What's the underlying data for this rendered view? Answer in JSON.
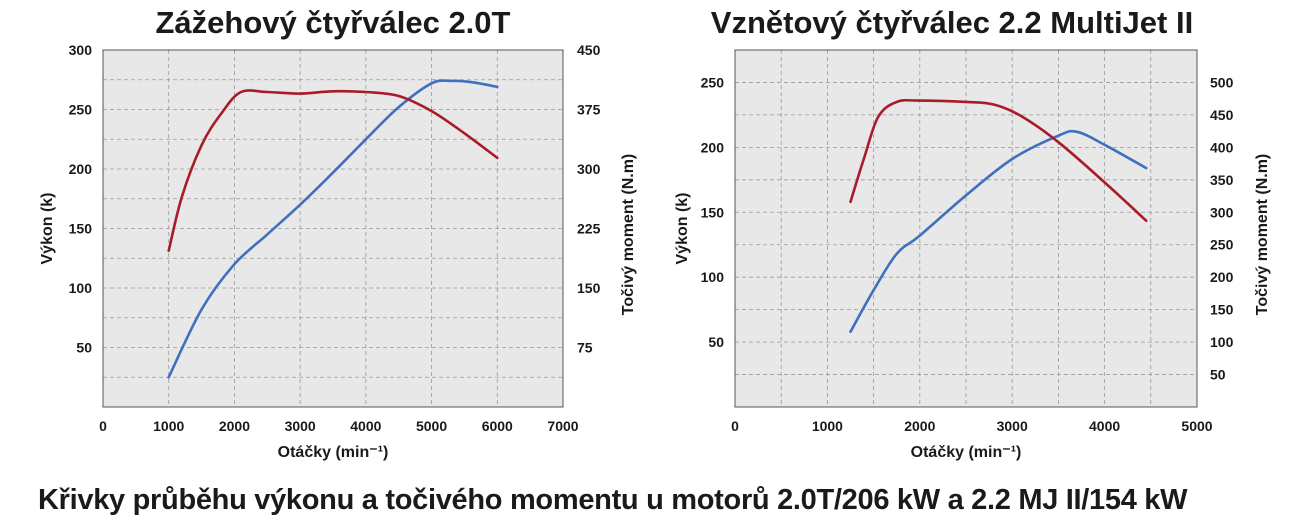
{
  "chart_data": [
    {
      "type": "line",
      "title": "Zážehový čtyřválec 2.0T",
      "xlabel": "Otáčky (min⁻¹)",
      "ylabel": "Výkon (k)",
      "y2label": "Točivý moment (N.m)",
      "xlim": [
        0,
        7000
      ],
      "ylim": [
        0,
        300
      ],
      "y2lim": [
        0,
        450
      ],
      "x_ticks": [
        "0",
        "1000",
        "2000",
        "3000",
        "4000",
        "5000",
        "6000",
        "7000"
      ],
      "y_ticks": [
        "50",
        "100",
        "150",
        "200",
        "250",
        "300"
      ],
      "y2_ticks": [
        "75",
        "150",
        "225",
        "300",
        "375",
        "450"
      ],
      "grid": true,
      "series": [
        {
          "name": "",
          "axis": "left",
          "color": "#3f6fbf",
          "x": [
            1000,
            1500,
            2000,
            2500,
            3000,
            3500,
            4000,
            4500,
            5000,
            5300,
            5600,
            6000
          ],
          "y": [
            25,
            82,
            120,
            145,
            170,
            197,
            225,
            252,
            272,
            274,
            273,
            269
          ]
        },
        {
          "name": "",
          "axis": "right",
          "color": "#a81c2a",
          "x": [
            1000,
            1200,
            1500,
            1800,
            2100,
            2500,
            3000,
            3500,
            4000,
            4500,
            5000,
            5500,
            6000
          ],
          "y": [
            197,
            265,
            330,
            370,
            397,
            397,
            395,
            398,
            397,
            392,
            373,
            345,
            314
          ]
        }
      ]
    },
    {
      "type": "line",
      "title": "Vznětový čtyřválec 2.2 MultiJet II",
      "xlabel": "Otáčky (min⁻¹)",
      "ylabel": "Výkon (k)",
      "y2label": "Točivý moment (N.m)",
      "xlim": [
        0,
        5000
      ],
      "ylim": [
        0,
        275
      ],
      "y2lim": [
        0,
        550
      ],
      "x_ticks": [
        "0",
        "1000",
        "2000",
        "3000",
        "4000",
        "5000"
      ],
      "y_ticks": [
        "50",
        "100",
        "150",
        "200",
        "250"
      ],
      "y2_ticks": [
        "50",
        "100",
        "150",
        "200",
        "250",
        "300",
        "350",
        "400",
        "450",
        "500"
      ],
      "grid": true,
      "series": [
        {
          "name": "",
          "axis": "left",
          "color": "#3f6fbf",
          "x": [
            1250,
            1500,
            1750,
            2000,
            2500,
            3000,
            3500,
            3700,
            4000,
            4450
          ],
          "y": [
            58,
            90,
            118,
            132,
            163,
            191,
            209,
            212,
            202,
            184
          ]
        },
        {
          "name": "",
          "axis": "right",
          "color": "#a81c2a",
          "x": [
            1250,
            1400,
            1550,
            1750,
            2000,
            2500,
            2800,
            3100,
            3500,
            4000,
            4450
          ],
          "y": [
            316,
            385,
            447,
            470,
            472,
            470,
            466,
            448,
            408,
            346,
            287
          ]
        }
      ]
    }
  ],
  "caption": "Křivky průběhu výkonu a točivého momentu u motorů 2.0T/206 kW a 2.2 MJ II/154 kW"
}
